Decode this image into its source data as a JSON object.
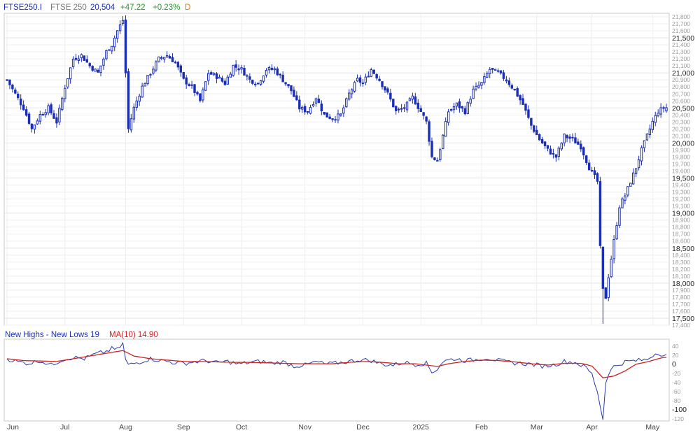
{
  "header": {
    "symbol": "FTSE250.I",
    "name": "FTSE 250",
    "last": "20,504",
    "change": "+47.22",
    "change_pct": "+0.23%",
    "period": "D"
  },
  "lower_panel": {
    "indicator_label": "New Highs - New Lows 19",
    "ma_label": "MA(10) 14.90"
  },
  "colors": {
    "candle": "#1b2fb5",
    "indicator": "#2b3aa8",
    "ma": "#cc2222",
    "change_positive": "#229922",
    "period": "#e07a00",
    "grid": "#e6e6e6"
  },
  "chart_data": [
    {
      "type": "candlestick",
      "title": "FTSE250.I",
      "ylim": [
        17400,
        21850
      ],
      "yticks_major": [
        17500,
        18000,
        18500,
        19000,
        19500,
        20000,
        20500,
        21000,
        21500
      ],
      "yticks_minor": [
        17400,
        17600,
        17700,
        17800,
        17900,
        18100,
        18200,
        18300,
        18400,
        18600,
        18700,
        18800,
        18900,
        19100,
        19200,
        19300,
        19400,
        19600,
        19700,
        19800,
        19900,
        20100,
        20200,
        20300,
        20400,
        20600,
        20700,
        20800,
        20900,
        21100,
        21200,
        21300,
        21400,
        21600,
        21700,
        21800
      ],
      "x_labels": [
        "Jun",
        "Jul",
        "Aug",
        "Sep",
        "Oct",
        "Nov",
        "Dec",
        "2025",
        "Feb",
        "Mar",
        "Apr",
        "May"
      ],
      "x_label_index": [
        0,
        21,
        43,
        64,
        85,
        108,
        129,
        150,
        172,
        192,
        212,
        234
      ],
      "grid": true,
      "close_points": [
        [
          0,
          20900
        ],
        [
          3,
          20700
        ],
        [
          6,
          20500
        ],
        [
          9,
          20200
        ],
        [
          12,
          20400
        ],
        [
          15,
          20500
        ],
        [
          18,
          20300
        ],
        [
          21,
          20800
        ],
        [
          24,
          21200
        ],
        [
          27,
          21250
        ],
        [
          30,
          21100
        ],
        [
          33,
          21000
        ],
        [
          36,
          21300
        ],
        [
          38,
          21400
        ],
        [
          40,
          21600
        ],
        [
          42,
          21750
        ],
        [
          43,
          21000
        ],
        [
          44,
          20200
        ],
        [
          46,
          20500
        ],
        [
          49,
          20800
        ],
        [
          52,
          21000
        ],
        [
          55,
          21200
        ],
        [
          58,
          21250
        ],
        [
          61,
          21150
        ],
        [
          64,
          20900
        ],
        [
          67,
          20800
        ],
        [
          70,
          20600
        ],
        [
          73,
          21000
        ],
        [
          76,
          20950
        ],
        [
          79,
          20850
        ],
        [
          82,
          21100
        ],
        [
          85,
          21050
        ],
        [
          88,
          20900
        ],
        [
          91,
          20850
        ],
        [
          94,
          21050
        ],
        [
          97,
          21050
        ],
        [
          100,
          20900
        ],
        [
          103,
          20750
        ],
        [
          106,
          20500
        ],
        [
          109,
          20450
        ],
        [
          112,
          20650
        ],
        [
          115,
          20400
        ],
        [
          118,
          20350
        ],
        [
          121,
          20400
        ],
        [
          124,
          20700
        ],
        [
          127,
          20900
        ],
        [
          129,
          20850
        ],
        [
          132,
          21050
        ],
        [
          135,
          20900
        ],
        [
          138,
          20700
        ],
        [
          141,
          20450
        ],
        [
          144,
          20500
        ],
        [
          147,
          20650
        ],
        [
          150,
          20450
        ],
        [
          152,
          20300
        ],
        [
          154,
          19800
        ],
        [
          156,
          19750
        ],
        [
          158,
          20100
        ],
        [
          160,
          20450
        ],
        [
          163,
          20550
        ],
        [
          166,
          20450
        ],
        [
          169,
          20750
        ],
        [
          172,
          20850
        ],
        [
          175,
          21050
        ],
        [
          178,
          21000
        ],
        [
          181,
          20900
        ],
        [
          184,
          20750
        ],
        [
          187,
          20550
        ],
        [
          190,
          20250
        ],
        [
          193,
          20050
        ],
        [
          196,
          19900
        ],
        [
          199,
          19800
        ],
        [
          202,
          20100
        ],
        [
          205,
          20050
        ],
        [
          208,
          19950
        ],
        [
          211,
          19650
        ],
        [
          214,
          19450
        ],
        [
          215,
          18500
        ],
        [
          216,
          17900
        ],
        [
          217,
          17800
        ],
        [
          218,
          18100
        ],
        [
          220,
          18600
        ],
        [
          222,
          19100
        ],
        [
          224,
          19250
        ],
        [
          226,
          19450
        ],
        [
          228,
          19650
        ],
        [
          230,
          19900
        ],
        [
          232,
          20100
        ],
        [
          234,
          20300
        ],
        [
          236,
          20450
        ],
        [
          238,
          20500
        ]
      ],
      "last_bar": {
        "open": 20457,
        "high": 20560,
        "low": 20430,
        "close": 20504
      }
    },
    {
      "type": "line",
      "title": "New Highs - New Lows 19",
      "ylim": [
        -125,
        55
      ],
      "yticks": [
        40,
        20,
        0,
        -20,
        -40,
        -60,
        -80,
        -100,
        -120
      ],
      "grid": false,
      "series": [
        {
          "name": "New Highs - New Lows 19",
          "points": [
            [
              0,
              12
            ],
            [
              4,
              5
            ],
            [
              8,
              2
            ],
            [
              12,
              8
            ],
            [
              16,
              -2
            ],
            [
              20,
              10
            ],
            [
              24,
              15
            ],
            [
              28,
              12
            ],
            [
              32,
              22
            ],
            [
              36,
              28
            ],
            [
              38,
              34
            ],
            [
              40,
              32
            ],
            [
              42,
              45
            ],
            [
              43,
              10
            ],
            [
              44,
              -2
            ],
            [
              48,
              5
            ],
            [
              52,
              12
            ],
            [
              56,
              8
            ],
            [
              60,
              4
            ],
            [
              64,
              2
            ],
            [
              68,
              5
            ],
            [
              72,
              8
            ],
            [
              76,
              3
            ],
            [
              80,
              6
            ],
            [
              84,
              0
            ],
            [
              88,
              4
            ],
            [
              92,
              6
            ],
            [
              96,
              2
            ],
            [
              100,
              5
            ],
            [
              104,
              -4
            ],
            [
              108,
              -2
            ],
            [
              112,
              5
            ],
            [
              116,
              0
            ],
            [
              120,
              3
            ],
            [
              124,
              6
            ],
            [
              128,
              10
            ],
            [
              132,
              8
            ],
            [
              136,
              0
            ],
            [
              140,
              -2
            ],
            [
              144,
              4
            ],
            [
              148,
              0
            ],
            [
              152,
              2
            ],
            [
              154,
              -18
            ],
            [
              156,
              -10
            ],
            [
              158,
              6
            ],
            [
              162,
              12
            ],
            [
              166,
              8
            ],
            [
              170,
              10
            ],
            [
              174,
              14
            ],
            [
              178,
              8
            ],
            [
              182,
              4
            ],
            [
              186,
              2
            ],
            [
              190,
              0
            ],
            [
              194,
              -4
            ],
            [
              198,
              -2
            ],
            [
              202,
              6
            ],
            [
              206,
              4
            ],
            [
              210,
              -8
            ],
            [
              212,
              -22
            ],
            [
              214,
              -60
            ],
            [
              216,
              -122
            ],
            [
              217,
              -40
            ],
            [
              218,
              -20
            ],
            [
              220,
              -5
            ],
            [
              224,
              5
            ],
            [
              228,
              8
            ],
            [
              232,
              10
            ],
            [
              234,
              20
            ],
            [
              236,
              26
            ],
            [
              238,
              19
            ]
          ]
        },
        {
          "name": "MA(10)",
          "points": [
            [
              0,
              12
            ],
            [
              6,
              8
            ],
            [
              12,
              7
            ],
            [
              18,
              6
            ],
            [
              24,
              12
            ],
            [
              30,
              18
            ],
            [
              36,
              24
            ],
            [
              42,
              30
            ],
            [
              46,
              18
            ],
            [
              52,
              12
            ],
            [
              58,
              9
            ],
            [
              64,
              6
            ],
            [
              70,
              6
            ],
            [
              76,
              5
            ],
            [
              82,
              4
            ],
            [
              88,
              4
            ],
            [
              94,
              3
            ],
            [
              100,
              2
            ],
            [
              106,
              1
            ],
            [
              112,
              1
            ],
            [
              118,
              1
            ],
            [
              124,
              4
            ],
            [
              130,
              6
            ],
            [
              136,
              4
            ],
            [
              142,
              1
            ],
            [
              148,
              1
            ],
            [
              152,
              -2
            ],
            [
              156,
              -5
            ],
            [
              160,
              1
            ],
            [
              166,
              6
            ],
            [
              172,
              9
            ],
            [
              178,
              8
            ],
            [
              184,
              5
            ],
            [
              190,
              1
            ],
            [
              196,
              -2
            ],
            [
              202,
              2
            ],
            [
              208,
              2
            ],
            [
              212,
              -4
            ],
            [
              216,
              -30
            ],
            [
              220,
              -26
            ],
            [
              224,
              -15
            ],
            [
              228,
              0
            ],
            [
              232,
              5
            ],
            [
              236,
              12
            ],
            [
              238,
              14.9
            ]
          ]
        }
      ]
    }
  ]
}
